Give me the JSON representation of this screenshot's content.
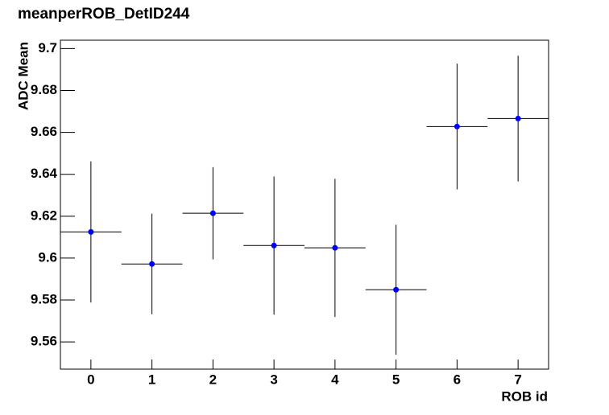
{
  "chart_data": {
    "type": "errorbar",
    "title": "meanperROB_DetID244",
    "x_label": "ROB id",
    "y_label": "ADC Mean",
    "x": [
      0,
      1,
      2,
      3,
      4,
      5,
      6,
      7
    ],
    "values": [
      9.6125,
      9.5972,
      9.6214,
      9.606,
      9.6049,
      9.5849,
      9.6628,
      9.6666
    ],
    "errors": [
      0.0337,
      0.024,
      0.022,
      0.033,
      0.033,
      0.031,
      0.03,
      0.03
    ],
    "xerr": [
      0.5,
      0.5,
      0.5,
      0.5,
      0.5,
      0.5,
      0.5,
      0.5
    ],
    "color": "#0000ff",
    "xlim": [
      -0.5,
      7.5
    ],
    "xticks": [
      0,
      1,
      2,
      3,
      4,
      5,
      6,
      7
    ],
    "ylim": [
      9.547,
      9.704
    ],
    "yticks": [
      9.56,
      9.58,
      9.6,
      9.62,
      9.64,
      9.66,
      9.68,
      9.7
    ]
  }
}
